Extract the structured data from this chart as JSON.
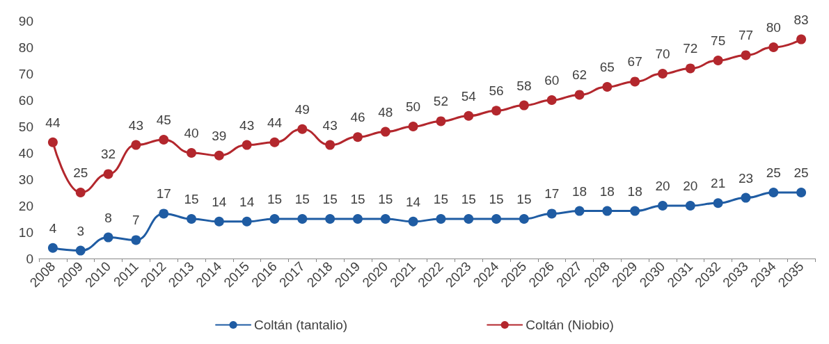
{
  "chart_data": {
    "type": "line",
    "categories": [
      "2008",
      "2009",
      "2010",
      "2011",
      "2012",
      "2013",
      "2014",
      "2015",
      "2016",
      "2017",
      "2018",
      "2019",
      "2020",
      "2021",
      "2022",
      "2023",
      "2024",
      "2025",
      "2026",
      "2027",
      "2028",
      "2029",
      "2030",
      "2031",
      "2032",
      "2033",
      "2034",
      "2035"
    ],
    "series": [
      {
        "name": "Coltán (tantalio)",
        "color": "#1f5ca3",
        "values": [
          4,
          3,
          8,
          7,
          17,
          15,
          14,
          14,
          15,
          15,
          15,
          15,
          15,
          14,
          15,
          15,
          15,
          15,
          17,
          18,
          18,
          18,
          20,
          20,
          21,
          23,
          25,
          25
        ]
      },
      {
        "name": "Coltán (Niobio)",
        "color": "#b3272d",
        "values": [
          44,
          25,
          32,
          43,
          45,
          40,
          39,
          43,
          44,
          49,
          43,
          46,
          48,
          50,
          52,
          54,
          56,
          58,
          60,
          62,
          65,
          67,
          70,
          72,
          75,
          77,
          80,
          83
        ]
      }
    ],
    "ylim": [
      0,
      90
    ],
    "yticks": [
      0,
      10,
      20,
      30,
      40,
      50,
      60,
      70,
      80,
      90
    ],
    "grid": false,
    "legend": "bottom",
    "marker": "circle",
    "line_style": "solid",
    "data_labels": true
  }
}
